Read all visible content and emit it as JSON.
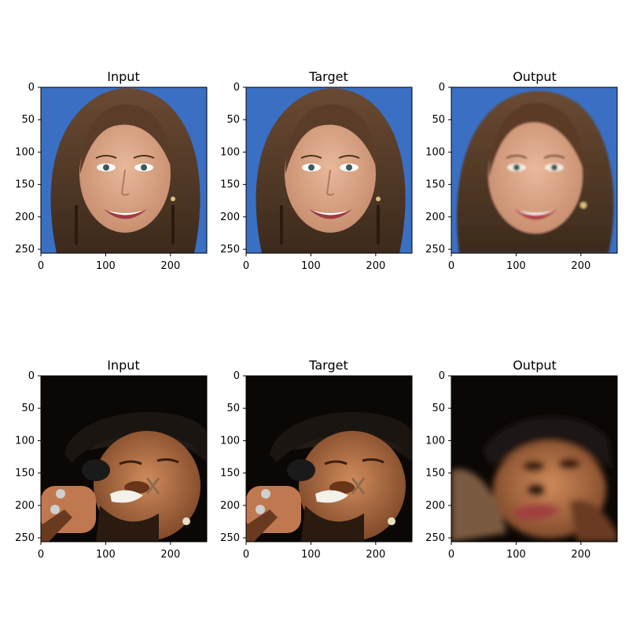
{
  "figure": {
    "panels": [
      {
        "title": "Input",
        "subject": "smiling woman, brown shoulder-length hair, earrings",
        "background": "#3a6fc4",
        "x_ticks": [
          "0",
          "100",
          "200"
        ],
        "y_ticks": [
          "0",
          "50",
          "100",
          "150",
          "200",
          "250"
        ]
      },
      {
        "title": "Target",
        "subject": "smiling woman, brown shoulder-length hair, earrings",
        "background": "#3a6fc4",
        "x_ticks": [
          "0",
          "100",
          "200"
        ],
        "y_ticks": [
          "0",
          "50",
          "100",
          "150",
          "200",
          "250"
        ]
      },
      {
        "title": "Output",
        "subject": "smiling woman, brown shoulder-length hair, earrings",
        "background": "#3a6fc4",
        "x_ticks": [
          "0",
          "100",
          "200"
        ],
        "y_ticks": [
          "0",
          "50",
          "100",
          "150",
          "200",
          "250"
        ]
      },
      {
        "title": "Input",
        "subject": "singing man in black hat holding microphone, dark background",
        "background": "#0b0704",
        "x_ticks": [
          "0",
          "100",
          "200"
        ],
        "y_ticks": [
          "0",
          "50",
          "100",
          "150",
          "200",
          "250"
        ]
      },
      {
        "title": "Target",
        "subject": "singing man in black hat holding microphone, dark background",
        "background": "#0b0704",
        "x_ticks": [
          "0",
          "100",
          "200"
        ],
        "y_ticks": [
          "0",
          "50",
          "100",
          "150",
          "200",
          "250"
        ]
      },
      {
        "title": "Output",
        "subject": "blurry reconstructed face looking upward, dark background",
        "background": "#0b0704",
        "x_ticks": [
          "0",
          "100",
          "200"
        ],
        "y_ticks": [
          "0",
          "50",
          "100",
          "150",
          "200",
          "250"
        ]
      }
    ]
  }
}
